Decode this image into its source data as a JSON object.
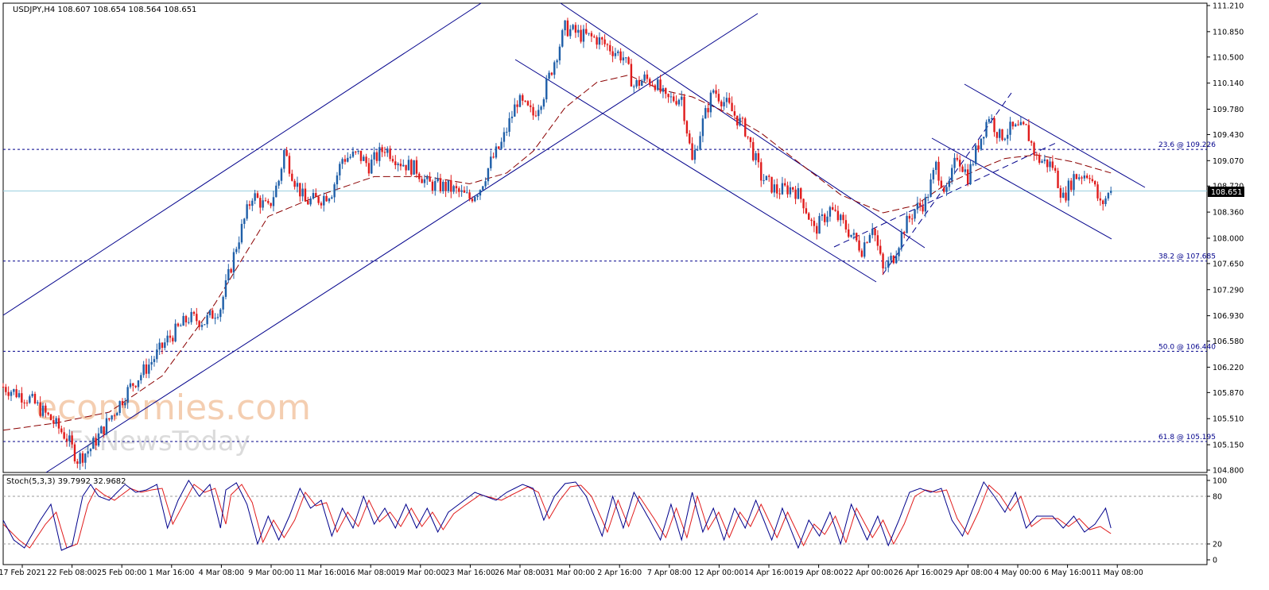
{
  "header": {
    "symbol_info": "USDJPY,H4  108.607 108.654 108.564 108.651",
    "stoch_info": "Stoch(5,3,3) 39.7992 32.9682"
  },
  "watermark": {
    "line1": "economies.com",
    "line2": "FxNewsToday"
  },
  "colors": {
    "bull": "#1f5fa8",
    "bear": "#e01b1b",
    "ma": "#8b0000",
    "channel": "#00008b",
    "fib": "#00008b",
    "current_price_line": "#9ad0e0",
    "stoch_main": "#00008b",
    "stoch_signal": "#e01b1b"
  },
  "chart_data": {
    "type": "candlestick",
    "symbol": "USDJPY",
    "timeframe": "H4",
    "ylim": [
      104.8,
      111.21
    ],
    "price_ticks": [
      "111.210",
      "110.850",
      "110.500",
      "110.140",
      "109.780",
      "109.430",
      "109.070",
      "108.720",
      "108.360",
      "108.000",
      "107.650",
      "107.290",
      "106.930",
      "106.580",
      "106.220",
      "105.870",
      "105.510",
      "105.150",
      "104.800"
    ],
    "x_tick_labels": [
      "17 Feb 2021",
      "22 Feb 08:00",
      "25 Feb 00:00",
      "1 Mar 16:00",
      "4 Mar 08:00",
      "9 Mar 00:00",
      "11 Mar 16:00",
      "16 Mar 08:00",
      "19 Mar 00:00",
      "23 Mar 16:00",
      "26 Mar 08:00",
      "31 Mar 00:00",
      "2 Apr 16:00",
      "7 Apr 08:00",
      "12 Apr 00:00",
      "14 Apr 16:00",
      "19 Apr 08:00",
      "22 Apr 00:00",
      "26 Apr 16:00",
      "29 Apr 08:00",
      "4 May 00:00",
      "6 May 16:00",
      "11 May 08:00"
    ],
    "current_price": 108.651,
    "current_price_label": "108.651",
    "fibonacci": [
      {
        "label": "23.6 @ 109.226",
        "price": 109.226
      },
      {
        "label": "38.2 @ 107.685",
        "price": 107.685
      },
      {
        "label": "50.0 @ 106.440",
        "price": 106.44
      },
      {
        "label": "61.8 @ 105.195",
        "price": 105.195
      }
    ],
    "price_path_anchors": [
      [
        0,
        105.95
      ],
      [
        10,
        105.78
      ],
      [
        18,
        105.5
      ],
      [
        24,
        105.25
      ],
      [
        28,
        104.95
      ],
      [
        33,
        105.1
      ],
      [
        40,
        105.5
      ],
      [
        48,
        105.95
      ],
      [
        56,
        106.3
      ],
      [
        62,
        106.6
      ],
      [
        70,
        106.9
      ],
      [
        76,
        106.85
      ],
      [
        82,
        107.05
      ],
      [
        88,
        107.9
      ],
      [
        94,
        108.6
      ],
      [
        100,
        108.4
      ],
      [
        104,
        108.8
      ],
      [
        106,
        109.2
      ],
      [
        110,
        108.8
      ],
      [
        114,
        108.5
      ],
      [
        120,
        108.55
      ],
      [
        124,
        108.65
      ],
      [
        128,
        109.1
      ],
      [
        134,
        109.15
      ],
      [
        138,
        109.0
      ],
      [
        144,
        109.25
      ],
      [
        150,
        109.05
      ],
      [
        156,
        108.95
      ],
      [
        160,
        108.75
      ],
      [
        168,
        108.7
      ],
      [
        176,
        108.55
      ],
      [
        180,
        108.7
      ],
      [
        184,
        109.05
      ],
      [
        188,
        109.3
      ],
      [
        194,
        109.9
      ],
      [
        200,
        109.7
      ],
      [
        204,
        110.0
      ],
      [
        208,
        110.45
      ],
      [
        212,
        110.9
      ],
      [
        218,
        110.8
      ],
      [
        224,
        110.75
      ],
      [
        228,
        110.65
      ],
      [
        234,
        110.5
      ],
      [
        238,
        110.1
      ],
      [
        242,
        110.2
      ],
      [
        246,
        110.15
      ],
      [
        250,
        109.9
      ],
      [
        256,
        109.95
      ],
      [
        260,
        109.05
      ],
      [
        264,
        109.6
      ],
      [
        268,
        110.05
      ],
      [
        274,
        109.8
      ],
      [
        280,
        109.5
      ],
      [
        286,
        108.85
      ],
      [
        292,
        108.65
      ],
      [
        298,
        108.7
      ],
      [
        302,
        108.5
      ],
      [
        306,
        108.1
      ],
      [
        312,
        108.4
      ],
      [
        318,
        108.15
      ],
      [
        324,
        107.85
      ],
      [
        328,
        108.2
      ],
      [
        332,
        107.55
      ],
      [
        336,
        107.75
      ],
      [
        340,
        108.15
      ],
      [
        344,
        108.4
      ],
      [
        348,
        108.5
      ],
      [
        352,
        109.0
      ],
      [
        356,
        108.6
      ],
      [
        360,
        109.15
      ],
      [
        364,
        108.85
      ],
      [
        368,
        109.3
      ],
      [
        372,
        109.7
      ],
      [
        376,
        109.4
      ],
      [
        380,
        109.5
      ],
      [
        386,
        109.5
      ],
      [
        390,
        109.1
      ],
      [
        396,
        109.0
      ],
      [
        400,
        108.55
      ],
      [
        404,
        108.85
      ],
      [
        410,
        108.9
      ],
      [
        414,
        108.45
      ],
      [
        418,
        108.651
      ]
    ],
    "moving_average": [
      [
        0,
        105.35
      ],
      [
        20,
        105.45
      ],
      [
        40,
        105.6
      ],
      [
        60,
        106.1
      ],
      [
        80,
        107.1
      ],
      [
        100,
        108.3
      ],
      [
        120,
        108.6
      ],
      [
        140,
        108.85
      ],
      [
        160,
        108.85
      ],
      [
        176,
        108.75
      ],
      [
        190,
        108.9
      ],
      [
        200,
        109.2
      ],
      [
        212,
        109.8
      ],
      [
        224,
        110.15
      ],
      [
        236,
        110.25
      ],
      [
        248,
        110.05
      ],
      [
        260,
        109.95
      ],
      [
        272,
        109.75
      ],
      [
        286,
        109.45
      ],
      [
        300,
        109.05
      ],
      [
        316,
        108.6
      ],
      [
        332,
        108.35
      ],
      [
        344,
        108.45
      ],
      [
        356,
        108.75
      ],
      [
        368,
        108.95
      ],
      [
        378,
        109.1
      ],
      [
        390,
        109.15
      ],
      [
        404,
        109.05
      ],
      [
        418,
        108.9
      ]
    ],
    "stochastic": {
      "label": "Stoch(5,3,3)",
      "main": 39.7992,
      "signal": 32.9682,
      "levels": [
        20,
        80
      ],
      "axis_ticks": [
        "100",
        "80",
        "20",
        "0"
      ],
      "main_anchors": [
        [
          0,
          50
        ],
        [
          4,
          25
        ],
        [
          8,
          15
        ],
        [
          14,
          50
        ],
        [
          18,
          70
        ],
        [
          22,
          12
        ],
        [
          26,
          18
        ],
        [
          30,
          80
        ],
        [
          33,
          95
        ],
        [
          36,
          80
        ],
        [
          40,
          75
        ],
        [
          46,
          95
        ],
        [
          50,
          85
        ],
        [
          54,
          88
        ],
        [
          58,
          95
        ],
        [
          62,
          40
        ],
        [
          66,
          75
        ],
        [
          70,
          100
        ],
        [
          74,
          80
        ],
        [
          78,
          95
        ],
        [
          82,
          40
        ],
        [
          84,
          88
        ],
        [
          88,
          97
        ],
        [
          92,
          70
        ],
        [
          96,
          20
        ],
        [
          100,
          55
        ],
        [
          104,
          25
        ],
        [
          108,
          55
        ],
        [
          112,
          90
        ],
        [
          116,
          65
        ],
        [
          120,
          75
        ],
        [
          124,
          30
        ],
        [
          128,
          65
        ],
        [
          132,
          40
        ],
        [
          136,
          80
        ],
        [
          140,
          45
        ],
        [
          144,
          65
        ],
        [
          148,
          40
        ],
        [
          152,
          70
        ],
        [
          156,
          40
        ],
        [
          160,
          65
        ],
        [
          164,
          35
        ],
        [
          168,
          60
        ],
        [
          172,
          70
        ],
        [
          178,
          85
        ],
        [
          186,
          75
        ],
        [
          190,
          85
        ],
        [
          196,
          95
        ],
        [
          200,
          90
        ],
        [
          204,
          50
        ],
        [
          208,
          80
        ],
        [
          212,
          96
        ],
        [
          216,
          98
        ],
        [
          220,
          80
        ],
        [
          226,
          30
        ],
        [
          230,
          80
        ],
        [
          234,
          40
        ],
        [
          238,
          85
        ],
        [
          244,
          50
        ],
        [
          248,
          25
        ],
        [
          252,
          70
        ],
        [
          256,
          25
        ],
        [
          260,
          85
        ],
        [
          264,
          35
        ],
        [
          268,
          65
        ],
        [
          272,
          25
        ],
        [
          276,
          65
        ],
        [
          280,
          40
        ],
        [
          284,
          75
        ],
        [
          290,
          25
        ],
        [
          294,
          65
        ],
        [
          300,
          15
        ],
        [
          304,
          50
        ],
        [
          308,
          30
        ],
        [
          312,
          60
        ],
        [
          316,
          20
        ],
        [
          320,
          70
        ],
        [
          326,
          25
        ],
        [
          330,
          55
        ],
        [
          334,
          18
        ],
        [
          338,
          50
        ],
        [
          342,
          85
        ],
        [
          346,
          90
        ],
        [
          350,
          85
        ],
        [
          354,
          90
        ],
        [
          358,
          50
        ],
        [
          362,
          30
        ],
        [
          366,
          65
        ],
        [
          370,
          98
        ],
        [
          374,
          80
        ],
        [
          378,
          60
        ],
        [
          382,
          85
        ],
        [
          386,
          40
        ],
        [
          390,
          55
        ],
        [
          396,
          55
        ],
        [
          400,
          40
        ],
        [
          404,
          55
        ],
        [
          408,
          35
        ],
        [
          412,
          45
        ],
        [
          416,
          65
        ],
        [
          418,
          40
        ]
      ],
      "signal_anchors": [
        [
          0,
          45
        ],
        [
          6,
          25
        ],
        [
          10,
          15
        ],
        [
          16,
          45
        ],
        [
          20,
          60
        ],
        [
          24,
          15
        ],
        [
          28,
          20
        ],
        [
          32,
          70
        ],
        [
          35,
          90
        ],
        [
          38,
          82
        ],
        [
          42,
          75
        ],
        [
          48,
          90
        ],
        [
          52,
          85
        ],
        [
          56,
          88
        ],
        [
          60,
          90
        ],
        [
          64,
          45
        ],
        [
          68,
          70
        ],
        [
          72,
          95
        ],
        [
          76,
          85
        ],
        [
          80,
          90
        ],
        [
          84,
          45
        ],
        [
          86,
          82
        ],
        [
          90,
          95
        ],
        [
          94,
          72
        ],
        [
          98,
          22
        ],
        [
          102,
          50
        ],
        [
          106,
          28
        ],
        [
          110,
          50
        ],
        [
          114,
          85
        ],
        [
          118,
          68
        ],
        [
          122,
          72
        ],
        [
          126,
          35
        ],
        [
          130,
          60
        ],
        [
          134,
          42
        ],
        [
          138,
          75
        ],
        [
          142,
          48
        ],
        [
          146,
          60
        ],
        [
          150,
          42
        ],
        [
          154,
          65
        ],
        [
          158,
          42
        ],
        [
          162,
          60
        ],
        [
          166,
          38
        ],
        [
          170,
          58
        ],
        [
          174,
          68
        ],
        [
          180,
          82
        ],
        [
          188,
          75
        ],
        [
          192,
          82
        ],
        [
          198,
          92
        ],
        [
          202,
          85
        ],
        [
          206,
          52
        ],
        [
          210,
          75
        ],
        [
          214,
          92
        ],
        [
          218,
          94
        ],
        [
          222,
          80
        ],
        [
          228,
          35
        ],
        [
          232,
          75
        ],
        [
          236,
          42
        ],
        [
          240,
          80
        ],
        [
          246,
          50
        ],
        [
          250,
          28
        ],
        [
          254,
          65
        ],
        [
          258,
          28
        ],
        [
          262,
          80
        ],
        [
          266,
          38
        ],
        [
          270,
          60
        ],
        [
          274,
          28
        ],
        [
          278,
          60
        ],
        [
          282,
          42
        ],
        [
          286,
          70
        ],
        [
          292,
          28
        ],
        [
          296,
          60
        ],
        [
          302,
          18
        ],
        [
          306,
          45
        ],
        [
          310,
          32
        ],
        [
          314,
          55
        ],
        [
          318,
          22
        ],
        [
          322,
          65
        ],
        [
          328,
          28
        ],
        [
          332,
          50
        ],
        [
          336,
          20
        ],
        [
          340,
          45
        ],
        [
          344,
          80
        ],
        [
          348,
          88
        ],
        [
          352,
          85
        ],
        [
          356,
          88
        ],
        [
          360,
          52
        ],
        [
          364,
          32
        ],
        [
          368,
          60
        ],
        [
          372,
          94
        ],
        [
          376,
          82
        ],
        [
          380,
          62
        ],
        [
          384,
          80
        ],
        [
          388,
          42
        ],
        [
          392,
          52
        ],
        [
          398,
          52
        ],
        [
          402,
          42
        ],
        [
          406,
          52
        ],
        [
          410,
          38
        ],
        [
          414,
          42
        ],
        [
          418,
          33
        ]
      ]
    }
  }
}
